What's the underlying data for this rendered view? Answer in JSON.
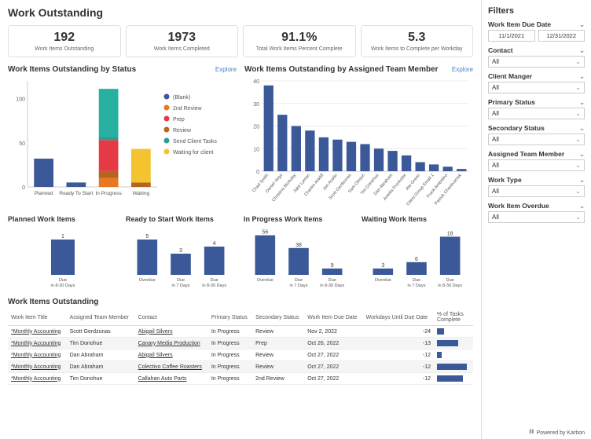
{
  "title": "Work Outstanding",
  "kpis": [
    {
      "value": "192",
      "label": "Work Items Outstanding"
    },
    {
      "value": "1973",
      "label": "Work Items Completed"
    },
    {
      "value": "91.1%",
      "label": "Total Work Items Percent Complete"
    },
    {
      "value": "5.3",
      "label": "Work Items to Complete per Workday"
    }
  ],
  "explore_label": "Explore",
  "status_chart": {
    "title": "Work Items Outstanding by Status",
    "y_max": 120,
    "y_ticks": [
      0,
      50,
      100
    ],
    "legend": [
      {
        "name": "(Blank)",
        "color": "#3b5998"
      },
      {
        "name": "2nd Review",
        "color": "#e87722"
      },
      {
        "name": "Prep",
        "color": "#e63946"
      },
      {
        "name": "Review",
        "color": "#b5651d"
      },
      {
        "name": "Send Client Tasks",
        "color": "#2a9d8f"
      },
      {
        "name": "Waiting for client",
        "color": "#f4c430"
      }
    ],
    "categories": [
      "Planned",
      "Ready To Start",
      "In Progress",
      "Waiting"
    ],
    "stacks": [
      [
        {
          "v": 32,
          "c": "#3b5998"
        }
      ],
      [
        {
          "v": 5,
          "c": "#3b5998"
        }
      ],
      [
        {
          "v": 10,
          "c": "#e87722"
        },
        {
          "v": 8,
          "c": "#b5651d"
        },
        {
          "v": 35,
          "c": "#e63946"
        },
        {
          "v": 3,
          "c": "#2a9d8f"
        },
        {
          "v": 55,
          "c": "#27b0a0"
        }
      ],
      [
        {
          "v": 5,
          "c": "#b5651d"
        },
        {
          "v": 38,
          "c": "#f4c430"
        }
      ]
    ]
  },
  "team_chart": {
    "title": "Work Items Outstanding by Assigned Team Member",
    "y_max": 40,
    "y_ticks": [
      0,
      10,
      20,
      30,
      40
    ],
    "color": "#3b5998",
    "bars": [
      {
        "label": "Chad Smith",
        "v": 38
      },
      {
        "label": "Daniel Vega",
        "v": 25
      },
      {
        "label": "Christina McAuley",
        "v": 20
      },
      {
        "label": "Jake Lyman",
        "v": 18
      },
      {
        "label": "Charles Ankliff",
        "v": 15
      },
      {
        "label": "Jon Austin",
        "v": 14
      },
      {
        "label": "Scott Gerdzunas",
        "v": 13
      },
      {
        "label": "Sam Olesch",
        "v": 12
      },
      {
        "label": "Tim Donohue",
        "v": 10
      },
      {
        "label": "Dan Abraham",
        "v": 9
      },
      {
        "label": "Amelia Fronhofer",
        "v": 7
      },
      {
        "label": "Joe Green",
        "v": 4
      },
      {
        "label": "Client Group Email 1",
        "v": 3
      },
      {
        "label": "Frank Ambolino",
        "v": 2
      },
      {
        "label": "Patrick Chantivanisk",
        "v": 1
      }
    ]
  },
  "small_charts": [
    {
      "title": "Planned Work Items",
      "color": "#3b5998",
      "y_max": 1.2,
      "bars": [
        {
          "label": "Due in 8-30 Days",
          "v": 1
        }
      ]
    },
    {
      "title": "Ready to Start Work Items",
      "color": "#3b5998",
      "y_max": 6,
      "bars": [
        {
          "label": "Overdue",
          "v": 5
        },
        {
          "label": "Due in 7 Days",
          "v": 3
        },
        {
          "label": "Due in 8-30 Days",
          "v": 4
        }
      ]
    },
    {
      "title": "In Progress Work Items",
      "color": "#3b5998",
      "y_max": 60,
      "bars": [
        {
          "label": "Overdue",
          "v": 56
        },
        {
          "label": "Due in 7 Days",
          "v": 38
        },
        {
          "label": "Due in 8-30 Days",
          "v": 9
        }
      ]
    },
    {
      "title": "Waiting Work Items",
      "color": "#3b5998",
      "y_max": 20,
      "bars": [
        {
          "label": "Overdue",
          "v": 3
        },
        {
          "label": "Due in 7 Days",
          "v": 6
        },
        {
          "label": "Due in 8-30 Days",
          "v": 18
        }
      ]
    }
  ],
  "table": {
    "title": "Work Items Outstanding",
    "columns": [
      "Work Item Title",
      "Assigned Team Member",
      "Contact",
      "Primary Status",
      "Secondary Status",
      "Work Item Due Date",
      "Workdays Until Due Date",
      "% of Tasks Complete"
    ],
    "rows": [
      {
        "title": "*Monthly Accounting",
        "member": "Scott Gerdzunas",
        "contact": "Abigail Silvers",
        "primary": "In Progress",
        "secondary": "Review",
        "due": "Nov 2, 2022",
        "days": "-24",
        "pct": 22
      },
      {
        "title": "*Monthly Accounting",
        "member": "Tim Donohue",
        "contact": "Canary Media Production",
        "primary": "In Progress",
        "secondary": "Prep",
        "due": "Oct 26, 2022",
        "days": "-13",
        "pct": 65
      },
      {
        "title": "*Monthly Accounting",
        "member": "Dan Abraham",
        "contact": "Abigail Silvers",
        "primary": "In Progress",
        "secondary": "Review",
        "due": "Oct 27, 2022",
        "days": "-12",
        "pct": 14
      },
      {
        "title": "*Monthly Accounting",
        "member": "Dan Abraham",
        "contact": "Colectivo Coffee Roasters",
        "primary": "In Progress",
        "secondary": "Review",
        "due": "Oct 27, 2022",
        "days": "-12",
        "pct": 90
      },
      {
        "title": "*Monthly Accounting",
        "member": "Tim Donohue",
        "contact": "Callahan Auto Parts",
        "primary": "In Progress",
        "secondary": "2nd Review",
        "due": "Oct 27, 2022",
        "days": "-12",
        "pct": 78
      }
    ]
  },
  "filters": {
    "title": "Filters",
    "due_date_label": "Work Item Due Date",
    "date_from": "11/1/2021",
    "date_to": "12/31/2022",
    "groups": [
      {
        "label": "Contact",
        "value": "All"
      },
      {
        "label": "Client Manger",
        "value": "All"
      },
      {
        "label": "Primary Status",
        "value": "All"
      },
      {
        "label": "Secondary Status",
        "value": "All"
      },
      {
        "label": "Assigned Team Member",
        "value": "All"
      },
      {
        "label": "Work Type",
        "value": "All"
      },
      {
        "label": "Work Item Overdue",
        "value": "All"
      }
    ]
  },
  "footer": "Powered by Karbon"
}
